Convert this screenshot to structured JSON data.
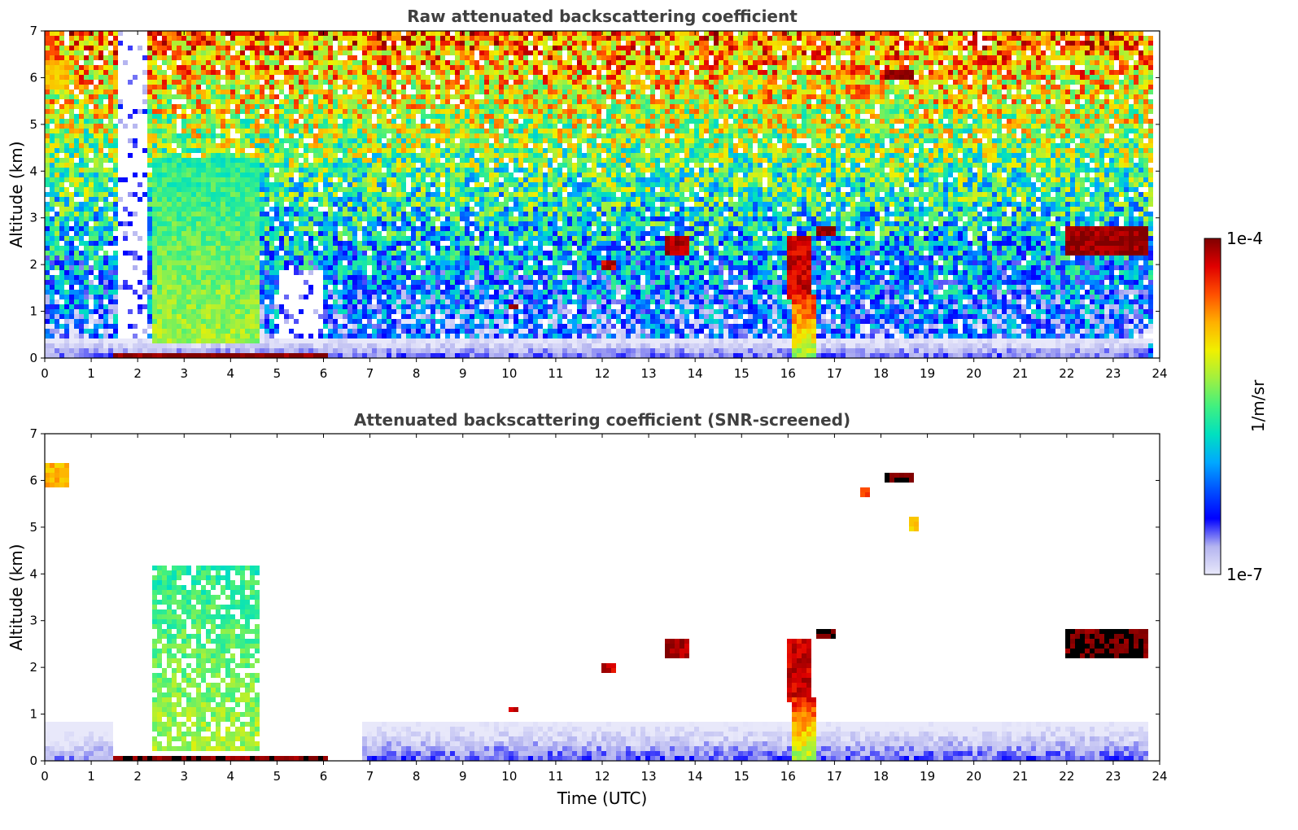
{
  "colormap": {
    "stops": [
      "#e8e8fa",
      "#b4b4f0",
      "#0000ff",
      "#0050ff",
      "#00a8ff",
      "#00e0c0",
      "#40f080",
      "#a0f040",
      "#f0f000",
      "#ffb000",
      "#ff5000",
      "#e00000",
      "#800000"
    ],
    "screen_flag_color": "#000000"
  },
  "colorbar": {
    "label": "1/m/sr",
    "max_label": "1e-4",
    "min_label": "1e-7",
    "scale": "log",
    "range": [
      1e-07,
      0.0001
    ]
  },
  "chart_data": [
    {
      "type": "heatmap",
      "id": "raw",
      "title": "Raw attenuated backscattering coefficient",
      "xlabel": "",
      "ylabel": "Altitude (km)",
      "xlim": [
        0,
        24
      ],
      "ylim": [
        0,
        7
      ],
      "xticks": [
        "0",
        "1",
        "2",
        "3",
        "4",
        "5",
        "6",
        "7",
        "8",
        "9",
        "10",
        "11",
        "12",
        "13",
        "14",
        "15",
        "16",
        "17",
        "18",
        "19",
        "20",
        "21",
        "22",
        "23",
        "24"
      ],
      "yticks": [
        "0",
        "1",
        "2",
        "3",
        "4",
        "5",
        "6",
        "7"
      ],
      "data_end_time": 23.8,
      "features": [
        {
          "kind": "boundary_layer",
          "t0": 0,
          "t1": 23.8,
          "z_top": 0.45,
          "log10": -6.6
        },
        {
          "kind": "noise_gap",
          "t0": 1.55,
          "t1": 2.25,
          "z0": 0.15,
          "z1": 7
        },
        {
          "kind": "noise_gap",
          "t0": 5.0,
          "t1": 6.0,
          "z0": 0.2,
          "z1": 1.9
        },
        {
          "kind": "fog_layer",
          "t0": 1.5,
          "t1": 6.1,
          "z0": 0.0,
          "z1": 0.14,
          "log10": -4.0
        },
        {
          "kind": "aerosol_plume",
          "t0": 2.3,
          "t1": 4.6,
          "z0": 0.3,
          "z1": 4.3,
          "log10": -5.6
        },
        {
          "kind": "cloud",
          "t0": 13.3,
          "t1": 13.9,
          "z0": 2.2,
          "z1": 2.6,
          "log10": -4.1
        },
        {
          "kind": "cloud",
          "t0": 15.95,
          "t1": 16.45,
          "z0": 1.3,
          "z1": 2.6,
          "log10": -4.2
        },
        {
          "kind": "cloud",
          "t0": 16.6,
          "t1": 17.0,
          "z0": 2.6,
          "z1": 2.8,
          "log10": -4.0
        },
        {
          "kind": "cloud",
          "t0": 18.1,
          "t1": 18.7,
          "z0": 5.95,
          "z1": 6.15,
          "log10": -4.0
        },
        {
          "kind": "cloud",
          "t0": 22.0,
          "t1": 23.8,
          "z0": 2.2,
          "z1": 2.85,
          "log10": -4.05
        },
        {
          "kind": "cloud",
          "t0": 10.0,
          "t1": 10.2,
          "z0": 1.0,
          "z1": 1.15,
          "log10": -4.1
        },
        {
          "kind": "cloud",
          "t0": 12.0,
          "t1": 12.3,
          "z0": 1.9,
          "z1": 2.1,
          "log10": -4.2
        },
        {
          "kind": "cloud",
          "t0": 17.5,
          "t1": 17.8,
          "z0": 5.5,
          "z1": 5.9,
          "log10": -4.4
        },
        {
          "kind": "precip_shaft",
          "t0": 16.1,
          "t1": 16.6,
          "z0": 0.0,
          "z1": 1.4,
          "log10": -5.3
        },
        {
          "kind": "aerosol_top",
          "t0": 0,
          "t1": 0.5,
          "z0": 5.7,
          "z1": 6.4,
          "log10": -4.8
        }
      ]
    },
    {
      "type": "heatmap",
      "id": "screened",
      "title": "Attenuated backscattering coefficient (SNR-screened)",
      "xlabel": "Time (UTC)",
      "ylabel": "Altitude (km)",
      "xlim": [
        0,
        24
      ],
      "ylim": [
        0,
        7
      ],
      "xticks": [
        "0",
        "1",
        "2",
        "3",
        "4",
        "5",
        "6",
        "7",
        "8",
        "9",
        "10",
        "11",
        "12",
        "13",
        "14",
        "15",
        "16",
        "17",
        "18",
        "19",
        "20",
        "21",
        "22",
        "23",
        "24"
      ],
      "yticks": [
        "0",
        "1",
        "2",
        "3",
        "4",
        "5",
        "6",
        "7"
      ],
      "data_end_time": 23.8,
      "features": [
        {
          "kind": "boundary_layer",
          "t0": 0,
          "t1": 1.5,
          "z_top": 0.8,
          "log10": -6.7
        },
        {
          "kind": "boundary_layer",
          "t0": 6.8,
          "t1": 23.8,
          "z_top": 0.8,
          "log10": -6.6
        },
        {
          "kind": "fog_layer",
          "t0": 1.5,
          "t1": 6.1,
          "z0": 0.0,
          "z1": 0.14,
          "log10": -4.0
        },
        {
          "kind": "aerosol_plume",
          "t0": 2.3,
          "t1": 4.6,
          "z0": 0.2,
          "z1": 4.2,
          "log10": -5.6
        },
        {
          "kind": "cloud",
          "t0": 13.3,
          "t1": 13.9,
          "z0": 2.2,
          "z1": 2.6,
          "log10": -4.1
        },
        {
          "kind": "cloud",
          "t0": 15.95,
          "t1": 16.45,
          "z0": 1.3,
          "z1": 2.6,
          "log10": -4.2
        },
        {
          "kind": "cloud",
          "t0": 16.6,
          "t1": 17.0,
          "z0": 2.6,
          "z1": 2.8,
          "log10": -3.9
        },
        {
          "kind": "cloud",
          "t0": 18.1,
          "t1": 18.7,
          "z0": 5.95,
          "z1": 6.15,
          "log10": -3.9
        },
        {
          "kind": "cloud",
          "t0": 22.0,
          "t1": 23.8,
          "z0": 2.2,
          "z1": 2.85,
          "log10": -3.95
        },
        {
          "kind": "cloud",
          "t0": 10.0,
          "t1": 10.2,
          "z0": 1.0,
          "z1": 1.15,
          "log10": -4.1
        },
        {
          "kind": "cloud",
          "t0": 12.0,
          "t1": 12.3,
          "z0": 1.9,
          "z1": 2.1,
          "log10": -4.2
        },
        {
          "kind": "cloud",
          "t0": 17.6,
          "t1": 17.8,
          "z0": 5.6,
          "z1": 5.85,
          "log10": -4.4
        },
        {
          "kind": "cloud",
          "t0": 18.6,
          "t1": 18.8,
          "z0": 4.95,
          "z1": 5.2,
          "log10": -4.8
        },
        {
          "kind": "precip_shaft",
          "t0": 16.1,
          "t1": 16.6,
          "z0": 0.0,
          "z1": 1.4,
          "log10": -5.3
        },
        {
          "kind": "aerosol_top",
          "t0": 0,
          "t1": 0.5,
          "z0": 5.85,
          "z1": 6.4,
          "log10": -4.8
        }
      ]
    }
  ]
}
